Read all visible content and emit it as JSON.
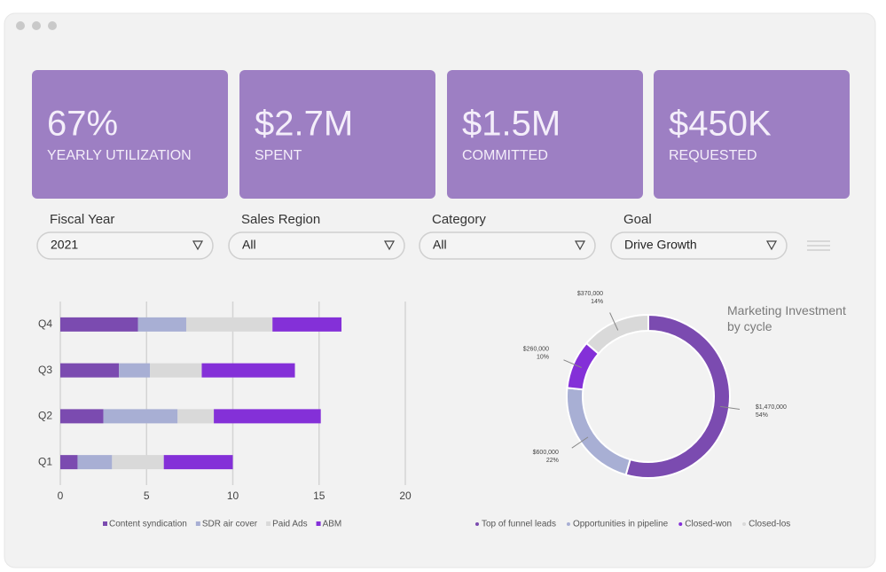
{
  "kpis": [
    {
      "value": "67%",
      "label": "YEARLY UTILIZATION"
    },
    {
      "value": "$2.7M",
      "label": "SPENT"
    },
    {
      "value": "$1.5M",
      "label": "COMMITTED"
    },
    {
      "value": "$450K",
      "label": "REQUESTED"
    }
  ],
  "filters": [
    {
      "label": "Fiscal Year",
      "value": "2021"
    },
    {
      "label": "Sales Region",
      "value": "All"
    },
    {
      "label": "Category",
      "value": "All"
    },
    {
      "label": "Goal",
      "value": "Drive Growth"
    }
  ],
  "chart_data": [
    {
      "type": "hbar_stacked",
      "categories": [
        "Q1",
        "Q2",
        "Q3",
        "Q4"
      ],
      "series": [
        {
          "name": "Content syndication",
          "color": "#7b4bb0",
          "values": [
            1.0,
            2.5,
            3.4,
            4.5
          ]
        },
        {
          "name": "SDR air cover",
          "color": "#a8afd4",
          "values": [
            2.0,
            4.3,
            1.8,
            2.8
          ]
        },
        {
          "name": "Paid Ads",
          "color": "#d9d9d9",
          "values": [
            3.0,
            2.1,
            3.0,
            5.0
          ]
        },
        {
          "name": "ABM",
          "color": "#8430d8",
          "values": [
            4.0,
            6.2,
            5.4,
            4.0
          ]
        }
      ],
      "xlim": [
        0,
        20
      ],
      "xticks": [
        0,
        5,
        10,
        15,
        20
      ],
      "grid": true,
      "legend": "bottom"
    },
    {
      "type": "donut",
      "title": "Marketing Investment by cycle",
      "categories": [
        "Top of funnel leads",
        "Opportunities in pipeline",
        "Closed-won",
        "Closed-los"
      ],
      "values": [
        1470000,
        600000,
        260000,
        370000
      ],
      "value_labels": [
        "$1,470,000",
        "$600,000",
        "$260,000",
        "$370,000"
      ],
      "percent_labels": [
        "54%",
        "22%",
        "10%",
        "14%"
      ],
      "colors": [
        "#7b4bb0",
        "#a8afd4",
        "#8430d8",
        "#d9d9d9"
      ],
      "legend": "bottom"
    }
  ]
}
